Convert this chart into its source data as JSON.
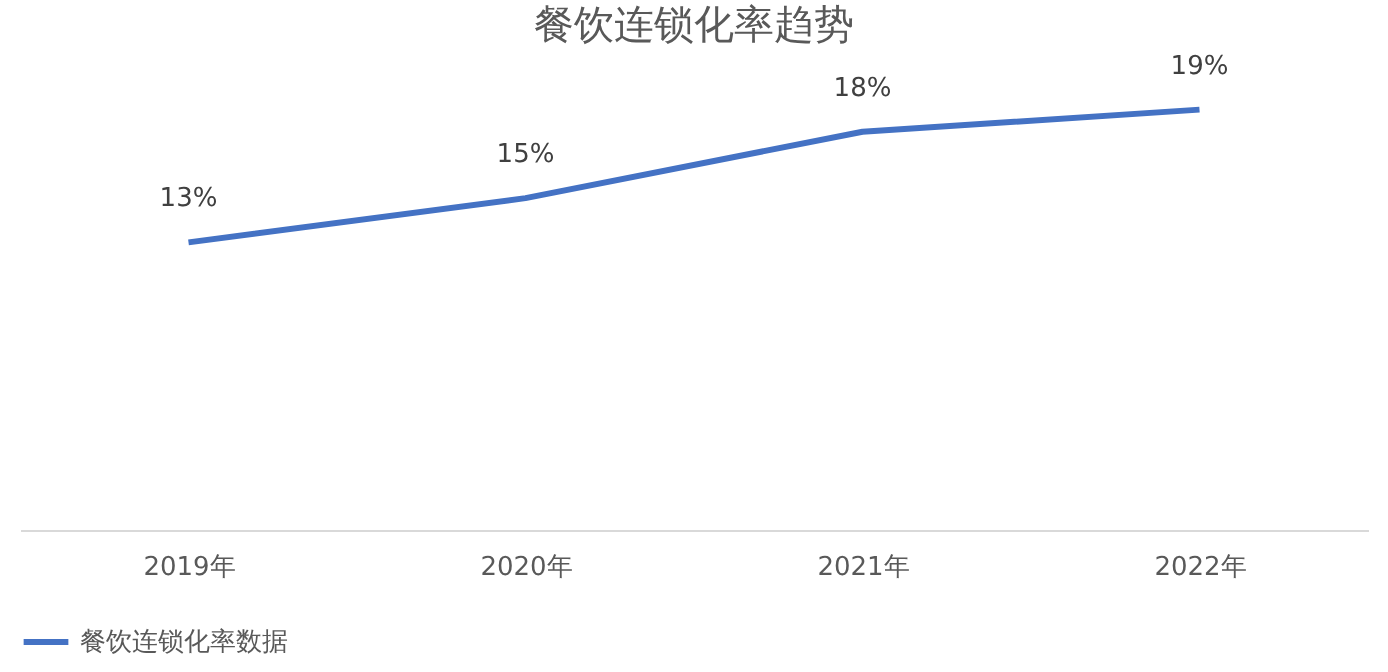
{
  "chart_data": {
    "type": "line",
    "title": "餐饮连锁化率趋势",
    "categories": [
      "2019年",
      "2020年",
      "2021年",
      "2022年"
    ],
    "series": [
      {
        "name": "餐饮连锁化率数据",
        "color": "#4472c4",
        "values": [
          13,
          15,
          18,
          19
        ],
        "value_labels": [
          "13%",
          "15%",
          "18%",
          "19%"
        ]
      }
    ],
    "grid": false,
    "legend": "bottom",
    "tick_labels": "x",
    "marker": "none",
    "line_style": "solid"
  }
}
